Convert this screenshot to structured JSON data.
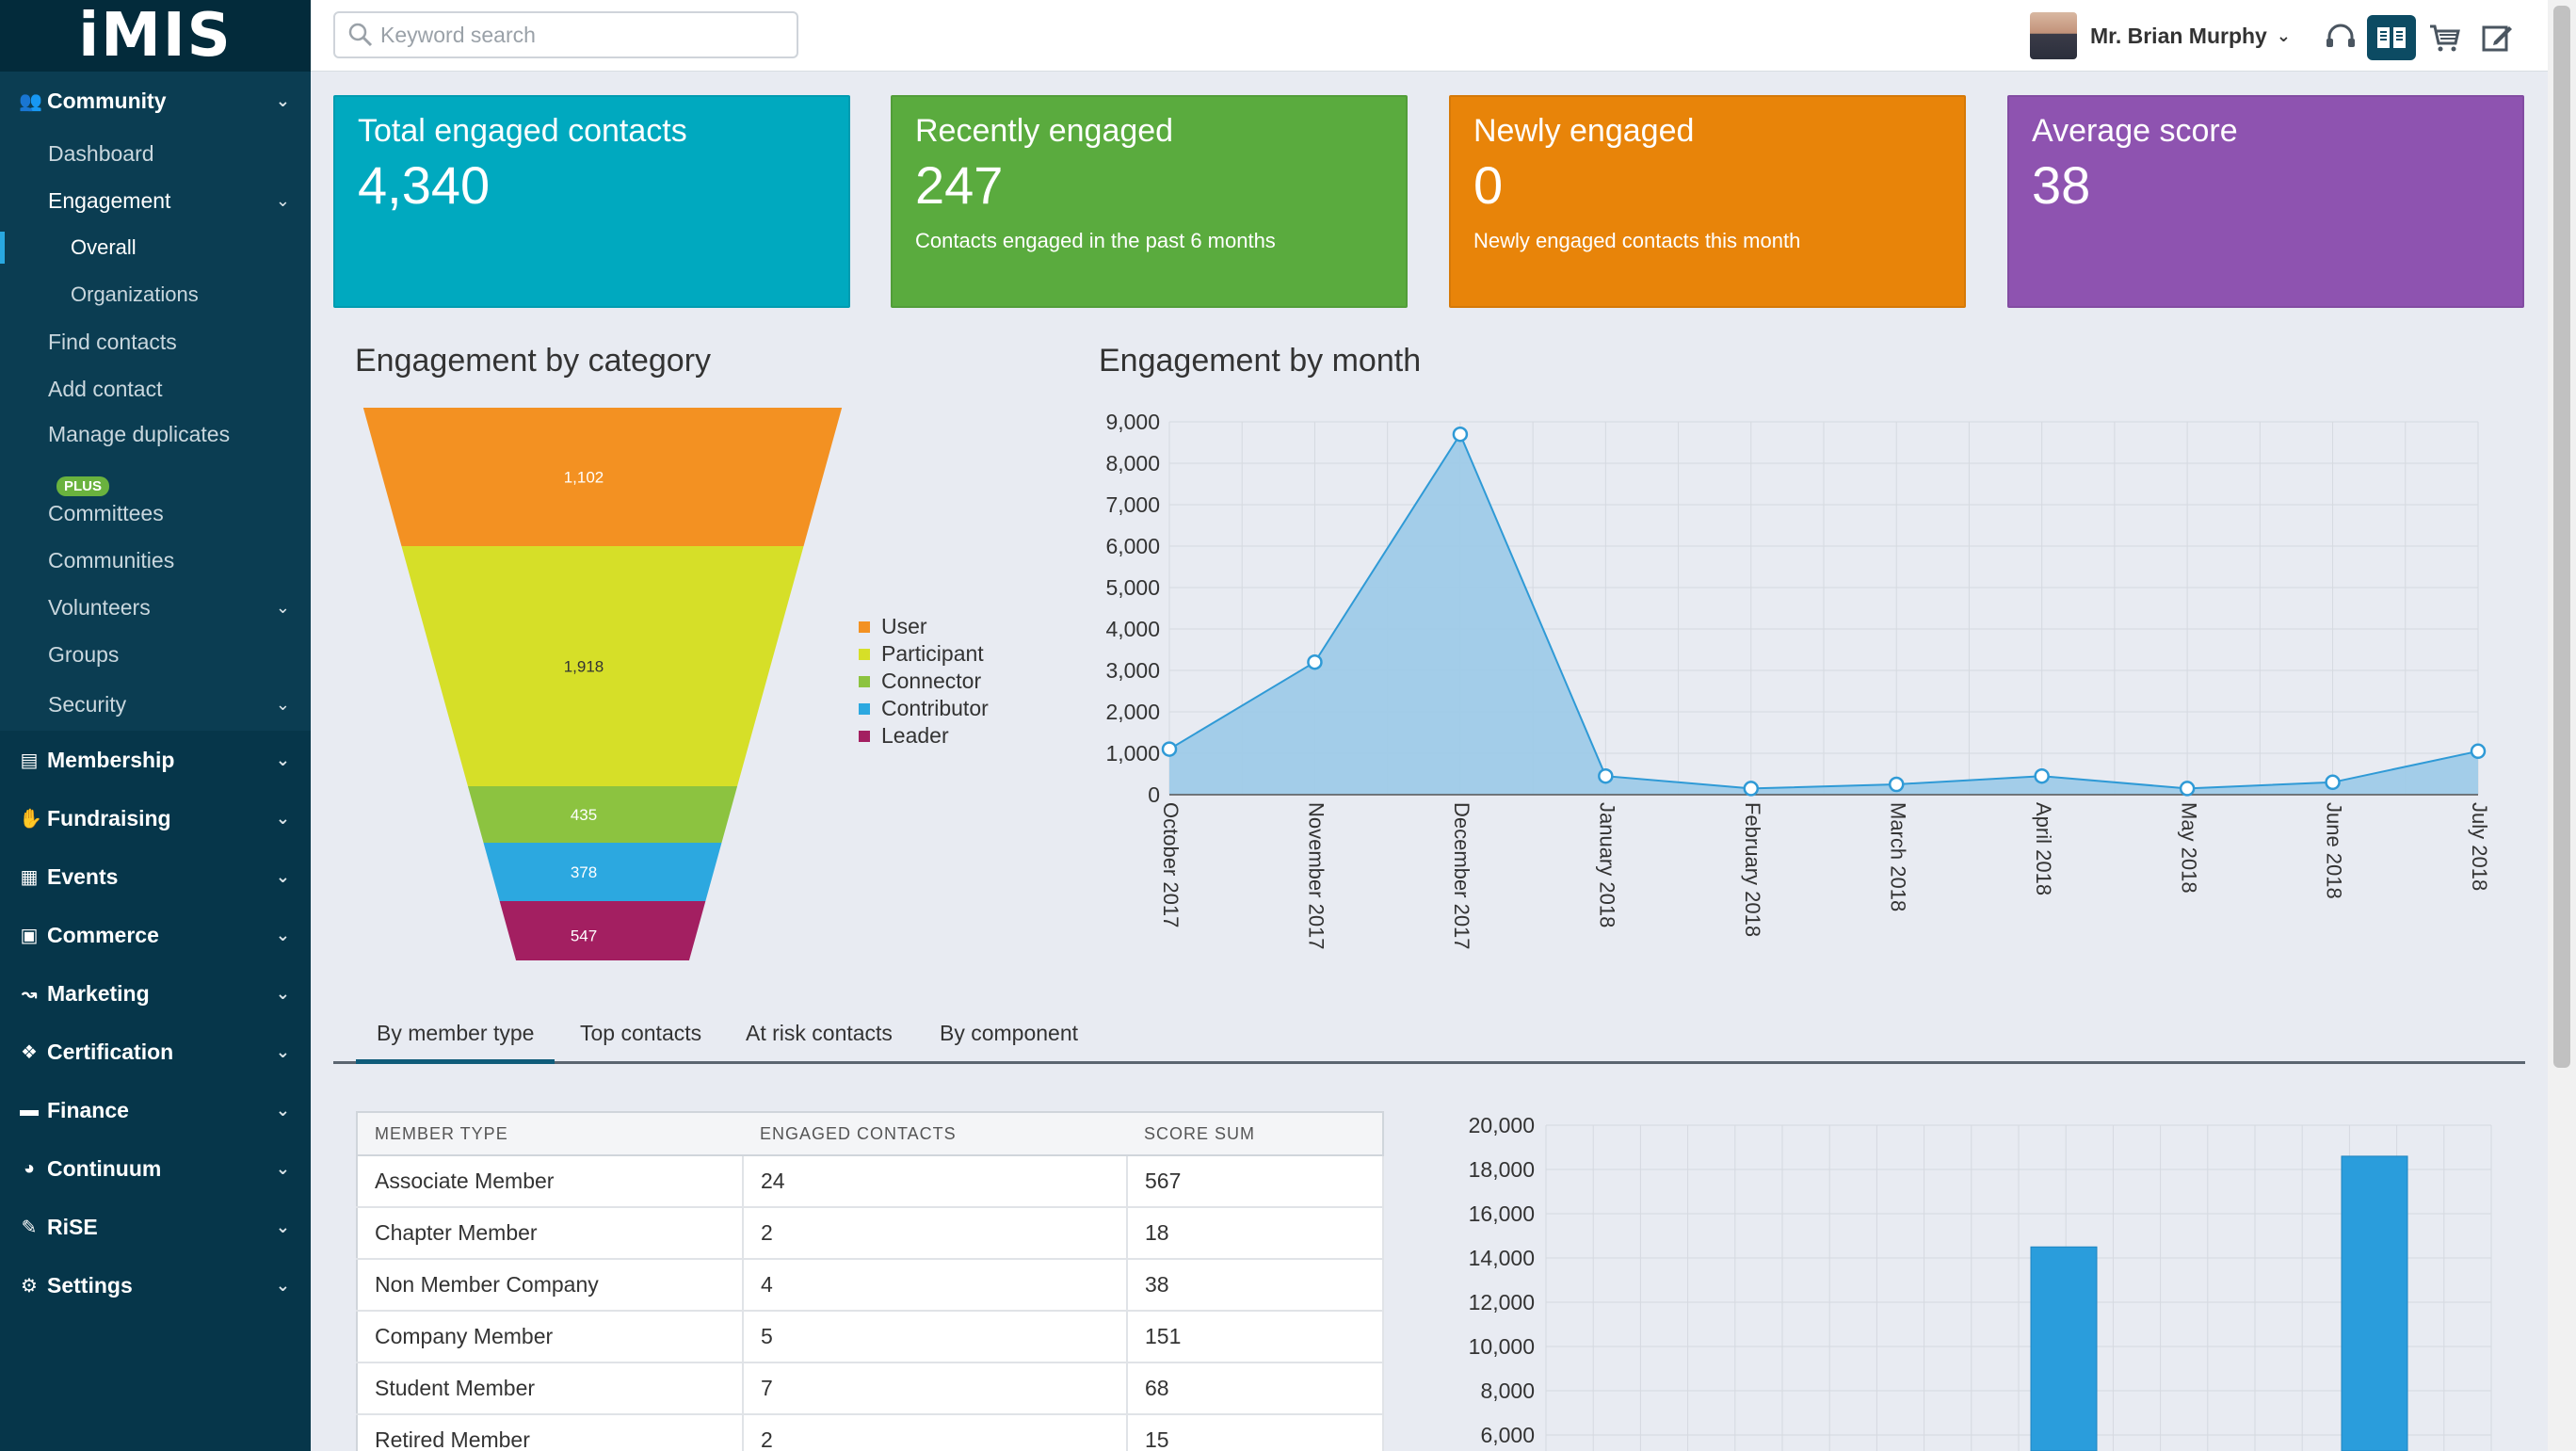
{
  "app": {
    "logo": "iMIS"
  },
  "search": {
    "placeholder": "Keyword search"
  },
  "user": {
    "name": "Mr. Brian Murphy"
  },
  "sidebar": {
    "community": "Community",
    "dashboard": "Dashboard",
    "engagement": "Engagement",
    "overall": "Overall",
    "organizations": "Organizations",
    "find_contacts": "Find contacts",
    "add_contact": "Add contact",
    "manage_duplicates": "Manage duplicates",
    "plus_badge": "PLUS",
    "committees": "Committees",
    "communities": "Communities",
    "volunteers": "Volunteers",
    "groups": "Groups",
    "security": "Security",
    "membership": "Membership",
    "fundraising": "Fundraising",
    "events": "Events",
    "commerce": "Commerce",
    "marketing": "Marketing",
    "certification": "Certification",
    "finance": "Finance",
    "continuum": "Continuum",
    "rise": "RiSE",
    "settings": "Settings"
  },
  "cards": [
    {
      "title": "Total engaged contacts",
      "value": "4,340",
      "subtitle": "",
      "color": "#00a9bf"
    },
    {
      "title": "Recently engaged",
      "value": "247",
      "subtitle": "Contacts engaged in the past 6 months",
      "color": "#5aab3e"
    },
    {
      "title": "Newly engaged",
      "value": "0",
      "subtitle": "Newly engaged contacts this month",
      "color": "#e88409"
    },
    {
      "title": "Average score",
      "value": "38",
      "subtitle": "",
      "color": "#8e53b0"
    }
  ],
  "sections": {
    "by_category": "Engagement by category",
    "by_month": "Engagement by month"
  },
  "tabs": [
    "By member type",
    "Top contacts",
    "At risk contacts",
    "By component"
  ],
  "table": {
    "headers": [
      "MEMBER TYPE",
      "ENGAGED CONTACTS",
      "SCORE SUM"
    ],
    "rows": [
      [
        "Associate Member",
        "24",
        "567"
      ],
      [
        "Chapter Member",
        "2",
        "18"
      ],
      [
        "Non Member Company",
        "4",
        "38"
      ],
      [
        "Company Member",
        "5",
        "151"
      ],
      [
        "Student Member",
        "7",
        "68"
      ],
      [
        "Retired Member",
        "2",
        "15"
      ]
    ]
  },
  "chart_data": [
    {
      "type": "funnel",
      "title": "Engagement by category",
      "categories": [
        "User",
        "Participant",
        "Connector",
        "Contributor",
        "Leader"
      ],
      "values": [
        1102,
        1918,
        435,
        378,
        547
      ],
      "labels": [
        "1,102",
        "1,918",
        "435",
        "378",
        "547"
      ],
      "colors": [
        "#f39122",
        "#d6df28",
        "#8cc340",
        "#2ca8e0",
        "#a31f61"
      ]
    },
    {
      "type": "area",
      "title": "Engagement by month",
      "x": [
        "October 2017",
        "November 2017",
        "December 2017",
        "January 2018",
        "February 2018",
        "March 2018",
        "April 2018",
        "May 2018",
        "June 2018",
        "July 2018"
      ],
      "values": [
        1100,
        3200,
        8700,
        450,
        150,
        250,
        450,
        150,
        300,
        1050
      ],
      "ylim": [
        0,
        9000
      ],
      "yticks": [
        "0",
        "1,000",
        "2,000",
        "3,000",
        "4,000",
        "5,000",
        "6,000",
        "7,000",
        "8,000",
        "9,000"
      ]
    },
    {
      "type": "bar",
      "title": "",
      "ylim": [
        6000,
        20000
      ],
      "yticks": [
        "6,000",
        "8,000",
        "10,000",
        "12,000",
        "14,000",
        "16,000",
        "18,000",
        "20,000"
      ],
      "values": [
        14500,
        18600
      ]
    }
  ]
}
